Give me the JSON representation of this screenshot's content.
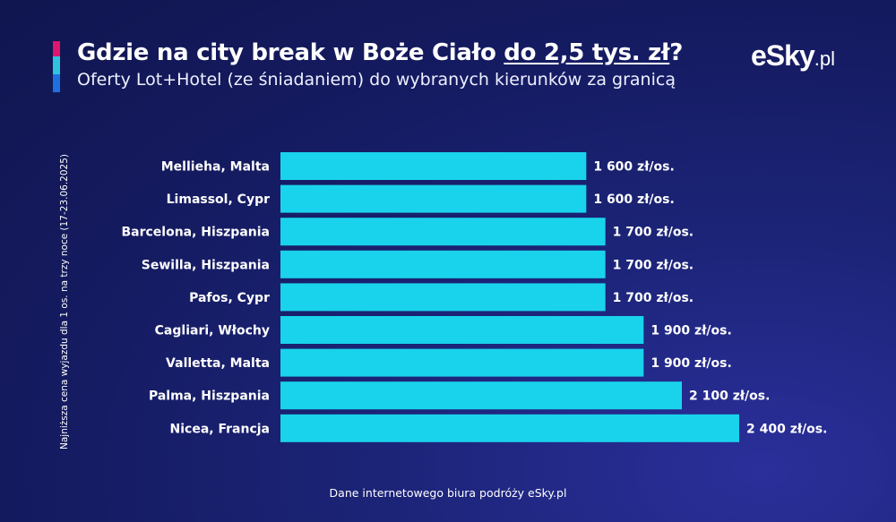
{
  "header": {
    "title_main": "Gdzie na city break w Boże Ciało ",
    "title_highlight": "do 2,5 tys. zł",
    "title_end": "?",
    "subtitle": "Oferty Lot+Hotel (ze śniadaniem) do wybranych kierunków za granicą"
  },
  "logo": {
    "brand": "eSky",
    "domain": ".pl"
  },
  "footer": {
    "source": "Dane internetowego biura podróży eSky.pl"
  },
  "colors": {
    "bar": "#19d3ec",
    "accent_pink": "#e0156e",
    "accent_cyan": "#2ec4e0",
    "accent_blue": "#1e6fe0"
  },
  "chart_data": {
    "type": "bar",
    "orientation": "horizontal",
    "ylabel": "Najniższa cena wyjazdu dla 1 os. na trzy noce (17-23.06.2025)",
    "categories": [
      "Mellieha, Malta",
      "Limassol, Cypr",
      "Barcelona, Hiszpania",
      "Sewilla, Hiszpania",
      "Pafos, Cypr",
      "Cagliari, Włochy",
      "Valletta, Malta",
      "Palma, Hiszpania",
      "Nicea, Francja"
    ],
    "values": [
      1600,
      1600,
      1700,
      1700,
      1700,
      1900,
      1900,
      2100,
      2400
    ],
    "value_labels": [
      "1 600 zł/os.",
      "1 600 zł/os.",
      "1 700 zł/os.",
      "1 700 zł/os.",
      "1 700 zł/os.",
      "1 900 zł/os.",
      "1 900 zł/os.",
      "2 100 zł/os.",
      "2 400 zł/os."
    ]
  }
}
